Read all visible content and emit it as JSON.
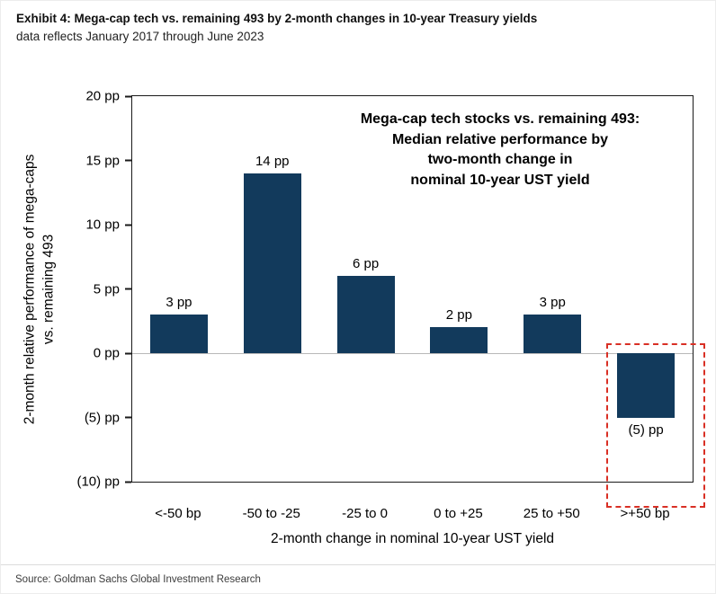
{
  "header": {
    "exhibit_title": "Exhibit 4: Mega-cap tech vs. remaining 493 by 2-month changes in 10-year Treasury yields",
    "subtitle": "data reflects January 2017 through June 2023"
  },
  "chart_data": {
    "type": "bar",
    "title": "Mega-cap tech stocks vs. remaining 493: Median relative performance by two-month change in nominal 10-year UST yield",
    "annotation_lines": [
      "Mega-cap tech stocks vs. remaining 493:",
      "Median relative performance by",
      "two-month change in",
      "nominal 10-year UST yield"
    ],
    "categories": [
      "<-50 bp",
      "-50 to -25",
      "-25 to 0",
      "0 to +25",
      "25 to +50",
      ">+50 bp"
    ],
    "values": [
      3,
      14,
      6,
      2,
      3,
      -5
    ],
    "bar_labels": [
      "3 pp",
      "14 pp",
      "6 pp",
      "2 pp",
      "3 pp",
      "(5) pp"
    ],
    "xlabel": "2-month change in nominal 10-year UST yield",
    "ylabel": "2-month relative performance of mega-caps vs. remaining 493",
    "ylabel_lines": [
      "2-month relative performance of mega-caps",
      "vs. remaining 493"
    ],
    "ylim": [
      -10,
      20
    ],
    "ytick_step": 5,
    "ytick_labels": [
      "20 pp",
      "15 pp",
      "10 pp",
      "5 pp",
      "0 pp",
      "(5) pp",
      "(10) pp"
    ],
    "grid": false,
    "legend": "none",
    "bar_color": "#123A5C",
    "highlight_index": 5,
    "highlight_color": "#D93025"
  },
  "footer": {
    "source": "Source: Goldman Sachs Global Investment Research"
  }
}
